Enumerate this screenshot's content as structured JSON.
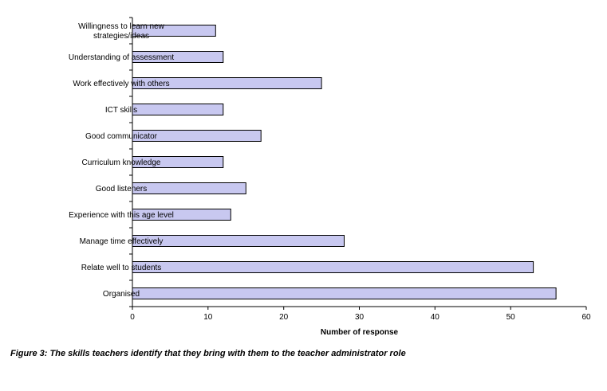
{
  "caption": "Figure 3: The skills teachers identify that they bring with them to the teacher administrator role",
  "chart_data": {
    "type": "bar",
    "orientation": "horizontal",
    "categories": [
      "Willingness to learn new strategies/ideas",
      "Understanding of assessment",
      "Work effectively with others",
      "ICT skills",
      "Good communicator",
      "Curriculum knowledge",
      "Good listeners",
      "Experience with this age level",
      "Manage time effectively",
      "Relate well to students",
      "Organised"
    ],
    "category_lines": [
      [
        "Willingness to learn new",
        "strategies/ideas"
      ],
      [
        "Understanding of assessment"
      ],
      [
        "Work effectively with others"
      ],
      [
        "ICT skills"
      ],
      [
        "Good communicator"
      ],
      [
        "Curriculum knowledge"
      ],
      [
        "Good listeners"
      ],
      [
        "Experience with this age level"
      ],
      [
        "Manage time effectively"
      ],
      [
        "Relate well to students"
      ],
      [
        "Organised"
      ]
    ],
    "values": [
      11,
      12,
      25,
      12,
      17,
      12,
      15,
      13,
      28,
      53,
      56
    ],
    "xlabel": "Number of response",
    "ylabel": "",
    "xlim": [
      0,
      60
    ],
    "xticks": [
      0,
      10,
      20,
      30,
      40,
      50,
      60
    ],
    "grid": false,
    "bar_color": "#c8c8f0",
    "bar_edge_color": "#000000"
  }
}
